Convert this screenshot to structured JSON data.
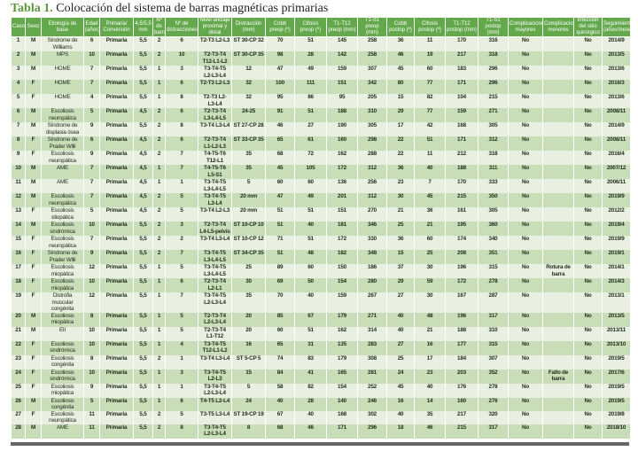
{
  "title": {
    "label": "Tabla 1.",
    "text": "Colocación del sistema de barras magnéticas primarias"
  },
  "colors": {
    "header": "#63a94c",
    "row_light": "#e9f0e2",
    "row_dark": "#c8deb8",
    "title_label": "#5a9a3a"
  },
  "columns": [
    "Caso",
    "Sexo",
    "Etiología de base",
    "Edad (años)",
    "Primaria/ Conversión",
    "4,5/5,5 mm",
    "Nº de barras",
    "Nº de distracciones",
    "Nivel anclaje proximal y distal",
    "Distracción (mm)",
    "Cobb preop (º)",
    "Cifosis preop (º)",
    "T1-T12 preop (mm)",
    "T1-S1 preop (mm)",
    "Cobb postop (º)",
    "Cifosis postop (º)",
    "T1-T12 postop (mm)",
    "T1-S1 postop (mm)",
    "Complicaciones mayores",
    "Complicaciones menores",
    "Infección del sitio quirúrgico",
    "Seguimiento (años/meses)"
  ],
  "rows": [
    [
      "1",
      "M",
      "Síndrome de Williams",
      "6",
      "Primaria",
      "5,5",
      "2",
      "6",
      "T2-T3 L2-L3",
      "ST 30-CP 32",
      "70",
      "51",
      "145",
      "258",
      "36",
      "11",
      "170",
      "316",
      "No",
      "",
      "No",
      "2014/9"
    ],
    [
      "2",
      "M",
      "MPS",
      "10",
      "Primaria",
      "5,5",
      "2",
      "10",
      "T2-T3-T4 T12-L1-L2",
      "ST 30-CP 35",
      "98",
      "28",
      "142",
      "258",
      "46",
      "19",
      "217",
      "318",
      "No",
      "",
      "No",
      "2013/5"
    ],
    [
      "3",
      "M",
      "HOME",
      "7",
      "Primaria",
      "5,5",
      "1",
      "3",
      "T3-T4-T5 L2-L3-L4",
      "12",
      "47",
      "49",
      "159",
      "307",
      "45",
      "60",
      "183",
      "296",
      "No",
      "",
      "No",
      "2013/6"
    ],
    [
      "4",
      "F",
      "HOME",
      "7",
      "Primaria",
      "5,5",
      "1",
      "6",
      "T2-T3 L2-L3",
      "32",
      "100",
      "111",
      "151",
      "342",
      "80",
      "77",
      "171",
      "296",
      "No",
      "",
      "No",
      "2016/3"
    ],
    [
      "5",
      "F",
      "HOME",
      "4",
      "Primaria",
      "5,5",
      "1",
      "8",
      "T2-T3 L2-L3-L4",
      "32",
      "95",
      "86",
      "95",
      "205",
      "15",
      "82",
      "104",
      "215",
      "No",
      "",
      "No",
      "2013/6"
    ],
    [
      "6",
      "M",
      "Escoliosis neuropática",
      "5",
      "Primaria",
      "4,5",
      "2",
      "6",
      "T2-T3-T4 L3-L4-L5",
      "24-25",
      "91",
      "51",
      "188",
      "310",
      "29",
      "77",
      "159",
      "271",
      "No",
      "",
      "No",
      "2008/11"
    ],
    [
      "7",
      "M",
      "Síndrome de displasia ósea",
      "9",
      "Primaria",
      "5,5",
      "2",
      "8",
      "T3-T4 L3-L4",
      "ST 27-CP 28",
      "46",
      "27",
      "190",
      "305",
      "17",
      "42",
      "168",
      "305",
      "No",
      "",
      "No",
      "2014/9"
    ],
    [
      "8",
      "F",
      "Síndrome de Prader Willi",
      "6",
      "Primaria",
      "4,5",
      "2",
      "6",
      "T2-T3-T4 L1-L2-L3",
      "ST 33-CP 35",
      "65",
      "61",
      "160",
      "298",
      "22",
      "51",
      "171",
      "312",
      "No",
      "",
      "No",
      "2008/11"
    ],
    [
      "9",
      "F",
      "Escoliosis neuropática",
      "9",
      "Primaria",
      "4,5",
      "2",
      "7",
      "T4-T5-T6 T12-L1",
      "35",
      "68",
      "72",
      "162",
      "288",
      "22",
      "11",
      "212",
      "318",
      "No",
      "",
      "No",
      "2016/4"
    ],
    [
      "10",
      "M",
      "AME",
      "7",
      "Primaria",
      "4,5",
      "1",
      "7",
      "T4-T5-T6 L5-S1",
      "35",
      "45",
      "105",
      "172",
      "312",
      "36",
      "40",
      "188",
      "311",
      "No",
      "",
      "No",
      "2007/12"
    ],
    [
      "11",
      "M",
      "AME",
      "7",
      "Primaria",
      "4,5",
      "1",
      "1",
      "T3-T4-T5 L3-L4-L5",
      "5",
      "60",
      "60",
      "136",
      "256",
      "23",
      "7",
      "170",
      "333",
      "No",
      "",
      "No",
      "2006/11"
    ],
    [
      "12",
      "M",
      "Escoliosis neuropática",
      "7",
      "Primaria",
      "4,5",
      "2",
      "5",
      "T3-T4-T5 L3-L4",
      "20 mm",
      "47",
      "49",
      "201",
      "312",
      "30",
      "45",
      "215",
      "350",
      "No",
      "",
      "No",
      "2019/9"
    ],
    [
      "13",
      "F",
      "Escoliosis idiopática",
      "5",
      "Primaria",
      "4,5",
      "2",
      "5",
      "T3-T4 L2-L3",
      "20 mm",
      "51",
      "51",
      "151",
      "270",
      "21",
      "36",
      "161",
      "305",
      "No",
      "",
      "No",
      "2012/2"
    ],
    [
      "14",
      "M",
      "Escoliosis sindrómica",
      "10",
      "Primaria",
      "5,5",
      "2",
      "3",
      "T2-T3-T4 L4-L5-pelvis",
      "ST 10-CP 10",
      "51",
      "40",
      "181",
      "346",
      "25",
      "21",
      "195",
      "360",
      "No",
      "",
      "No",
      "2019/4"
    ],
    [
      "15",
      "F",
      "Escoliosis neuropática",
      "7",
      "Primaria",
      "5,5",
      "2",
      "2",
      "T3-T4 L3-L4",
      "ST 10-CP 12",
      "71",
      "51",
      "172",
      "330",
      "36",
      "60",
      "174",
      "340",
      "No",
      "",
      "No",
      "2019/9"
    ],
    [
      "16",
      "F",
      "Síndrome de Prader Willi",
      "9",
      "Primaria",
      "5,5",
      "2",
      "7",
      "T3-T4-T5 L3-L4-L5",
      "ST 34-CP 35",
      "51",
      "48",
      "182",
      "348",
      "15",
      "25",
      "208",
      "351",
      "No",
      "",
      "No",
      "2019/1"
    ],
    [
      "17",
      "F",
      "Escoliosis miopática",
      "12",
      "Primaria",
      "5,5",
      "1",
      "5",
      "T3-T4-T5 L3-L4-L5",
      "25",
      "89",
      "60",
      "150",
      "186",
      "37",
      "30",
      "196",
      "315",
      "No",
      "Rotura de barra",
      "No",
      "2014/1"
    ],
    [
      "18",
      "F",
      "Escoliosis miopática",
      "10",
      "Primaria",
      "5,5",
      "1",
      "6",
      "T2-T3-T4 L2-L1",
      "30",
      "69",
      "50",
      "154",
      "280",
      "29",
      "59",
      "172",
      "278",
      "No",
      "",
      "No",
      "2014/3"
    ],
    [
      "19",
      "F",
      "Distrofia muscular congénita",
      "12",
      "Primaria",
      "5,5",
      "1",
      "7",
      "T3-T4-T5 L2-L3-L4",
      "35",
      "70",
      "40",
      "159",
      "267",
      "27",
      "30",
      "167",
      "287",
      "No",
      "",
      "No",
      "2013/1"
    ],
    [
      "20",
      "M",
      "Escoliosis miopática",
      "8",
      "Primaria",
      "5,5",
      "1",
      "5",
      "T2-T3-T4 L2-L3-L4",
      "20",
      "85",
      "67",
      "179",
      "271",
      "40",
      "48",
      "196",
      "317",
      "No",
      "",
      "No",
      "2013/5"
    ],
    [
      "21",
      "M",
      "EII",
      "10",
      "Primaria",
      "5,5",
      "1",
      "5",
      "T2-T3-T4 L1-T12",
      "20",
      "60",
      "51",
      "162",
      "314",
      "40",
      "21",
      "188",
      "310",
      "No",
      "",
      "No",
      "2013/11"
    ],
    [
      "22",
      "F",
      "Escoliosis sindrómica",
      "10",
      "Primaria",
      "5,5",
      "1",
      "4",
      "T3-T4-T5 T12-L1-L2",
      "16",
      "65",
      "31",
      "135",
      "283",
      "27",
      "16",
      "177",
      "315",
      "No",
      "",
      "No",
      "2013/10"
    ],
    [
      "23",
      "F",
      "Escoliosis congénita",
      "8",
      "Primaria",
      "5,5",
      "2",
      "1",
      "T3-T4 L3-L4",
      "ST 5-CP 5",
      "74",
      "83",
      "179",
      "308",
      "25",
      "17",
      "184",
      "307",
      "No",
      "",
      "No",
      "2019/5"
    ],
    [
      "24",
      "F",
      "Escoliosis sindrómica",
      "10",
      "Primaria",
      "5,5",
      "1",
      "3",
      "T3-T4-T5 L2-L3",
      "15",
      "84",
      "41",
      "165",
      "281",
      "24",
      "23",
      "203",
      "352",
      "No",
      "Fallo de barra",
      "No",
      "2017/6"
    ],
    [
      "25",
      "F",
      "Escoliosis miopática",
      "9",
      "Primaria",
      "5,5",
      "1",
      "1",
      "T3-T4-T5 L2-L3-L4",
      "5",
      "58",
      "82",
      "154",
      "252",
      "45",
      "40",
      "176",
      "278",
      "No",
      "",
      "No",
      "2019/5"
    ],
    [
      "26",
      "M",
      "Escoliosis congénita",
      "5",
      "Primaria",
      "5,5",
      "1",
      "6",
      "T4-T5 L2-L4",
      "24",
      "40",
      "28",
      "140",
      "246",
      "16",
      "14",
      "160",
      "276",
      "No",
      "",
      "No",
      "2019/5"
    ],
    [
      "27",
      "F",
      "Escoliosis neuropática",
      "11",
      "Primaria",
      "5,5",
      "2",
      "5",
      "T3-T5 L3-L4",
      "ST 19-CP 19",
      "67",
      "40",
      "168",
      "302",
      "40",
      "35",
      "217",
      "320",
      "No",
      "",
      "No",
      "2019/8"
    ],
    [
      "28",
      "M",
      "AME",
      "11",
      "Primaria",
      "5,5",
      "2",
      "8",
      "T3-T4-T5 L2-L3-L4",
      "8",
      "68",
      "46",
      "171",
      "296",
      "18",
      "46",
      "215",
      "317",
      "No",
      "",
      "No",
      "2018/10"
    ]
  ]
}
